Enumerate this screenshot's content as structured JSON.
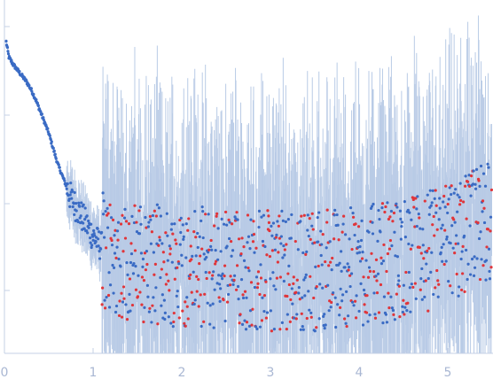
{
  "chart_data": {
    "type": "scatter",
    "title": "",
    "xlabel": "",
    "ylabel": "",
    "x_ticks": [
      "0",
      "1",
      "2",
      "3",
      "4",
      "5"
    ],
    "xlim": [
      0,
      5.52
    ],
    "y_scale": "log",
    "y_ticks_labeled": false,
    "grid": false,
    "legend": "none",
    "colors": {
      "main_points": "#3a6bc4",
      "negative_points": "#e0353a",
      "error_bars": "#b9cbe6",
      "axis": "#c5d0e6",
      "tick_label": "#a9b7d3"
    },
    "series": [
      {
        "description_key": "intensity-profile",
        "color": "#3a6bc4",
        "points": [
          [
            0.02,
            0.96
          ],
          [
            0.05,
            0.92
          ],
          [
            0.1,
            0.9
          ],
          [
            0.15,
            0.885
          ],
          [
            0.2,
            0.87
          ],
          [
            0.25,
            0.855
          ],
          [
            0.3,
            0.835
          ],
          [
            0.35,
            0.81
          ],
          [
            0.4,
            0.78
          ],
          [
            0.45,
            0.75
          ],
          [
            0.5,
            0.72
          ],
          [
            0.55,
            0.68
          ],
          [
            0.6,
            0.64
          ],
          [
            0.65,
            0.61
          ],
          [
            0.7,
            0.58
          ],
          [
            0.75,
            0.55
          ],
          [
            0.8,
            0.53
          ],
          [
            0.85,
            0.51
          ],
          [
            0.9,
            0.49
          ],
          [
            0.95,
            0.47
          ],
          [
            1.0,
            0.45
          ],
          [
            1.1,
            0.42
          ],
          [
            1.2,
            0.4
          ],
          [
            1.3,
            0.39
          ],
          [
            1.5,
            0.38
          ],
          [
            2.0,
            0.37
          ],
          [
            2.5,
            0.365
          ],
          [
            3.0,
            0.36
          ],
          [
            3.5,
            0.36
          ],
          [
            4.0,
            0.37
          ],
          [
            4.5,
            0.39
          ],
          [
            5.0,
            0.43
          ],
          [
            5.5,
            0.5
          ]
        ]
      }
    ]
  }
}
